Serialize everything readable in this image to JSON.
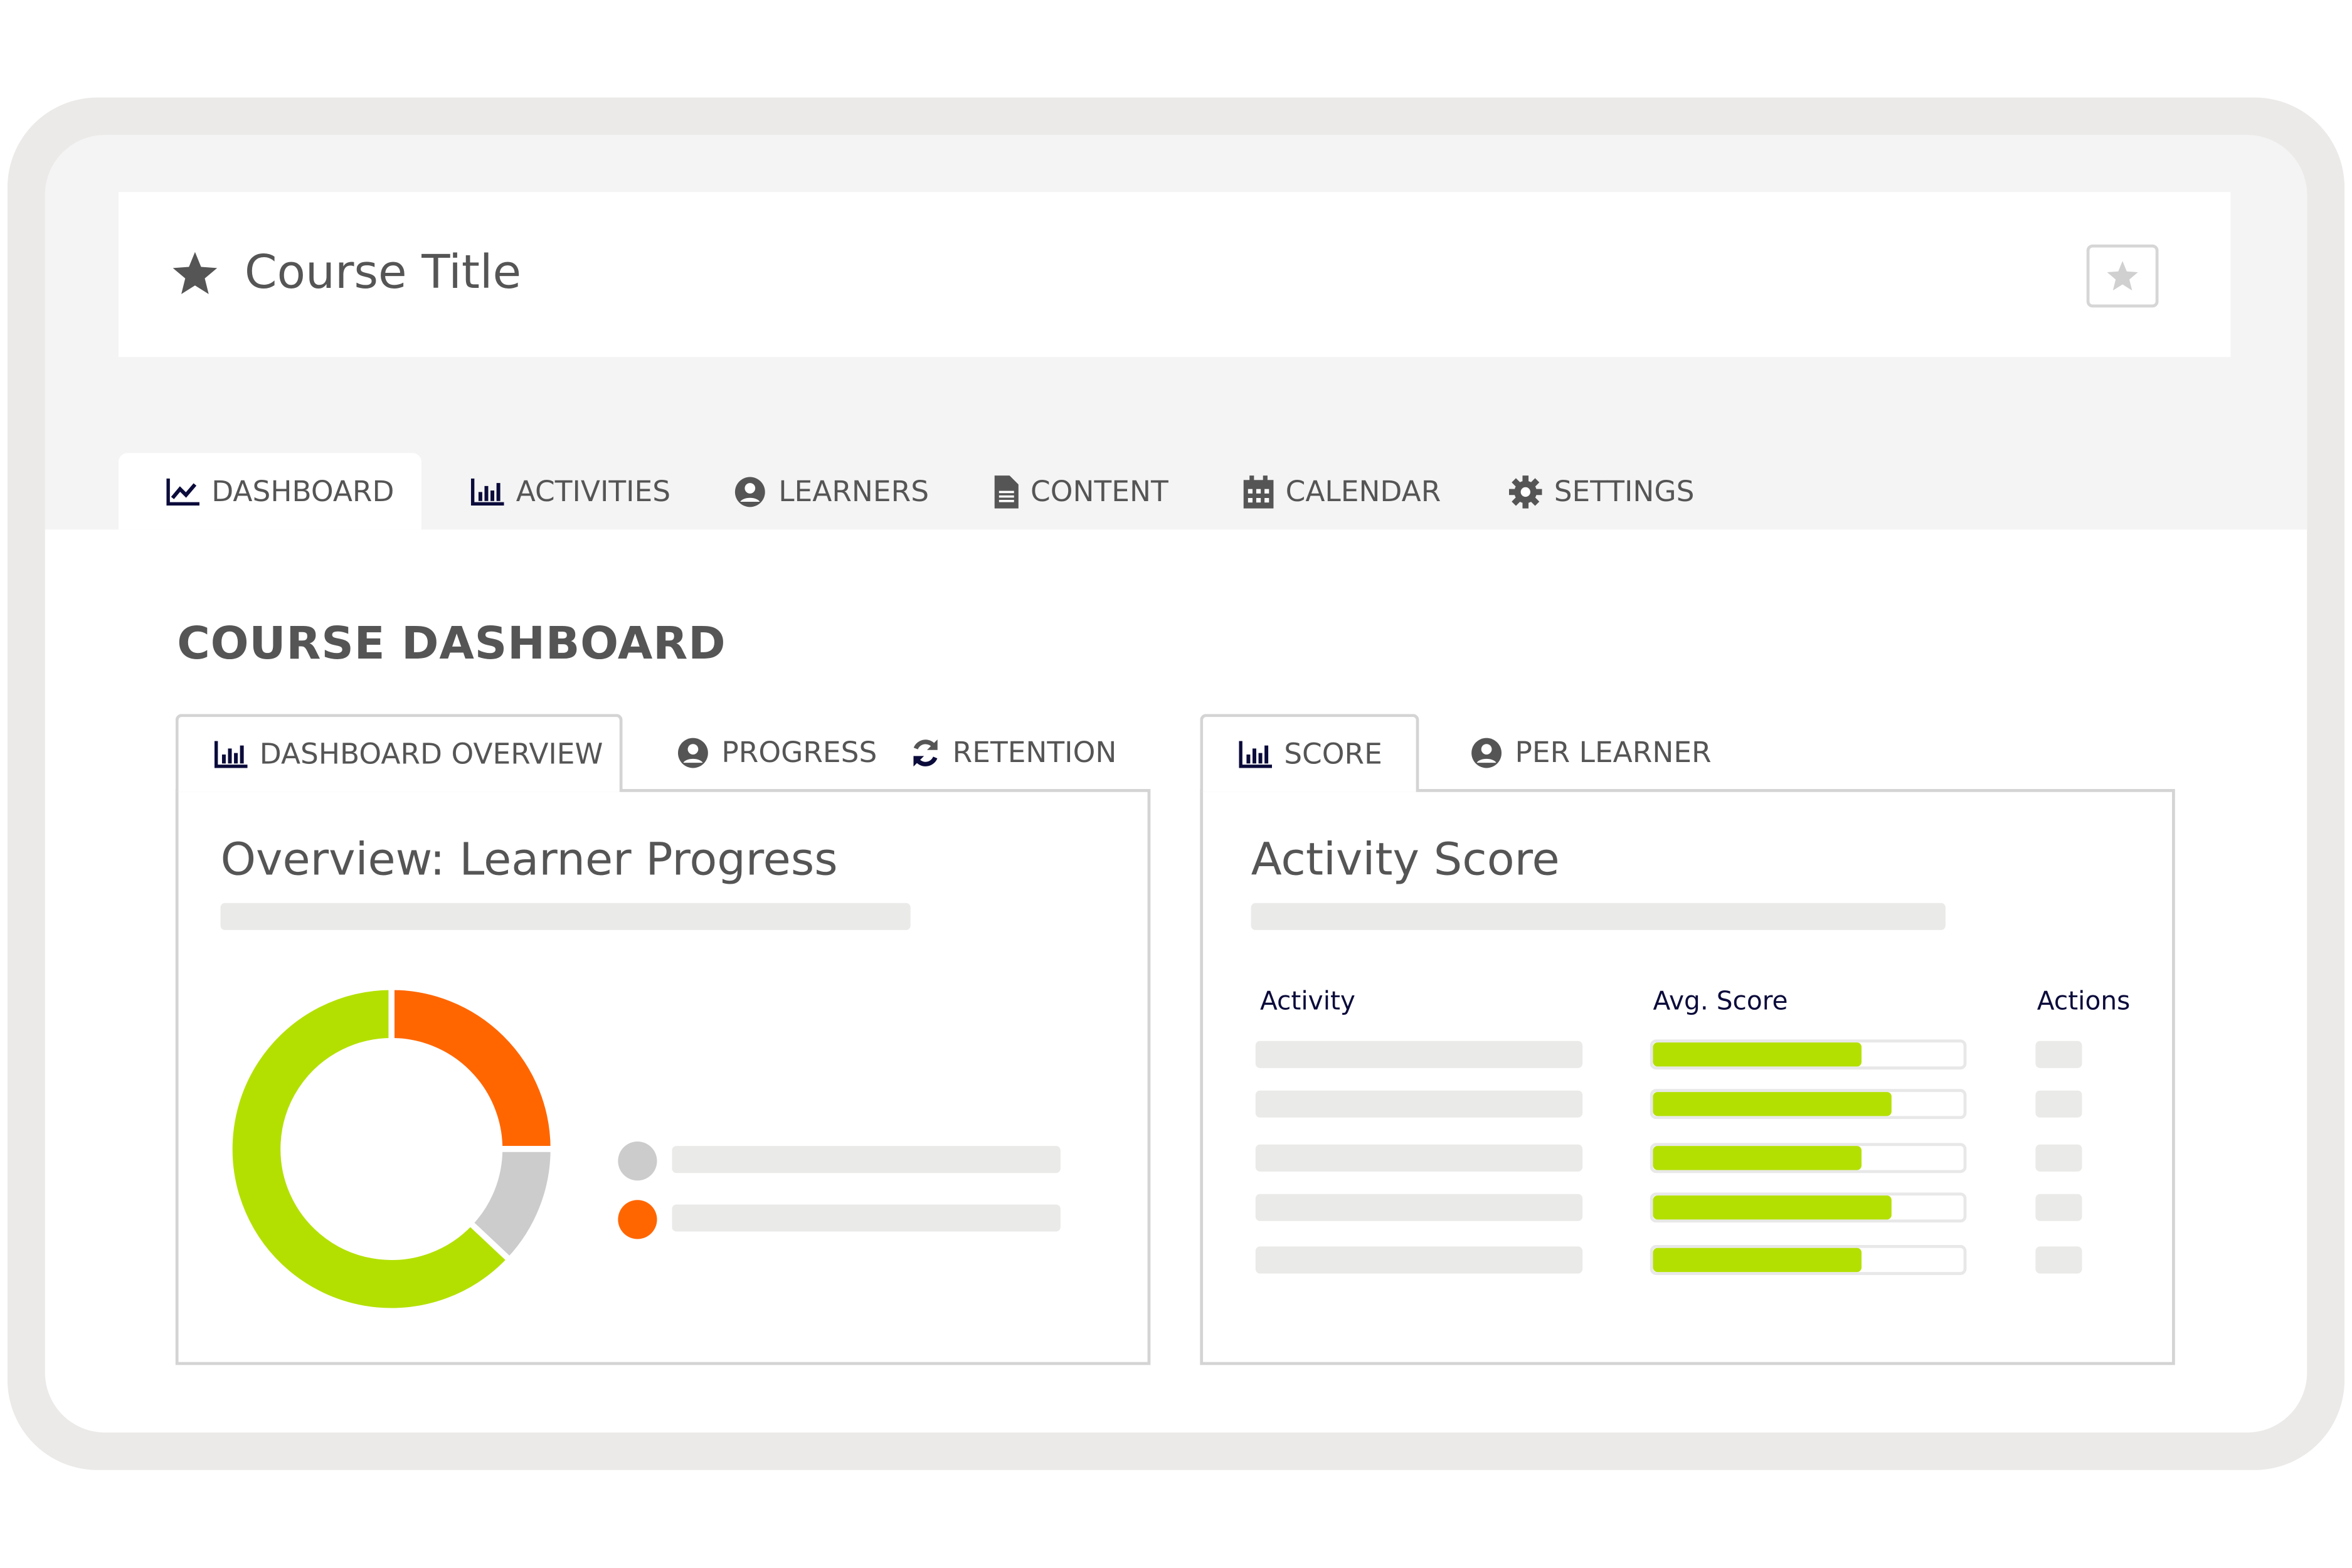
{
  "header": {
    "title": "Course Title",
    "star_icon": "star-icon",
    "favorite_button_icon": "star-icon"
  },
  "nav_tabs": [
    {
      "label": "DASHBOARD",
      "icon": "line-chart-icon",
      "active": true
    },
    {
      "label": "ACTIVITIES",
      "icon": "bar-chart-icon"
    },
    {
      "label": "LEARNERS",
      "icon": "user-circle-icon"
    },
    {
      "label": "CONTENT",
      "icon": "file-icon"
    },
    {
      "label": "CALENDAR",
      "icon": "calendar-icon"
    },
    {
      "label": "SETTINGS",
      "icon": "gear-icon"
    }
  ],
  "page_heading": "COURSE DASHBOARD",
  "left_panel": {
    "tabs": [
      {
        "label": "DASHBOARD OVERVIEW",
        "icon": "bar-chart-icon",
        "active": true
      },
      {
        "label": "PROGRESS",
        "icon": "user-circle-icon"
      },
      {
        "label": "RETENTION",
        "icon": "refresh-icon"
      }
    ],
    "title": "Overview: Learner Progress"
  },
  "right_panel": {
    "tabs": [
      {
        "label": "SCORE",
        "icon": "bar-chart-icon",
        "active": true
      },
      {
        "label": "PER LEARNER",
        "icon": "user-circle-icon"
      }
    ],
    "title": "Activity Score",
    "columns": [
      "Activity",
      "Avg. Score",
      "Actions"
    ],
    "score_fractions": [
      0.67,
      0.77,
      0.67,
      0.77,
      0.67
    ]
  },
  "chart_data": {
    "type": "pie",
    "donut": true,
    "values": [
      25,
      12,
      63
    ],
    "colors": [
      "#ff6600",
      "#cccccc",
      "#b3e000"
    ]
  },
  "colors": {
    "accent": "#b3e000",
    "orange": "#ff6600",
    "gray": "#cccccc",
    "icon_navy": "#0b0b3b"
  }
}
